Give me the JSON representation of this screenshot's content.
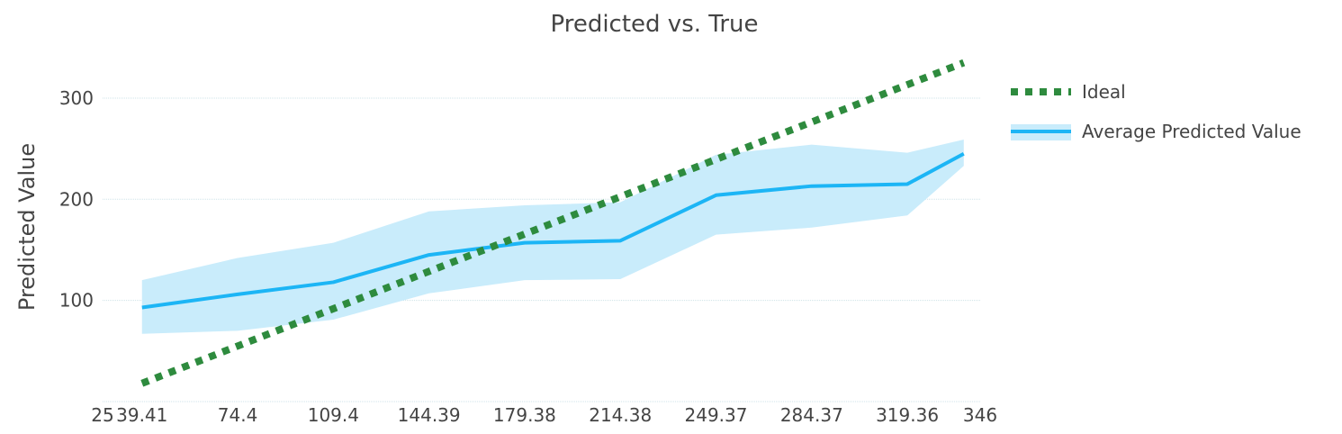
{
  "chart_data": {
    "type": "line",
    "title": "Predicted vs. True",
    "xlabel": "",
    "ylabel": "Predicted Value",
    "xlim": [
      25,
      346
    ],
    "ylim": [
      0,
      340
    ],
    "x_ticks": [
      "25",
      "39.41",
      "74.4",
      "109.4",
      "144.39",
      "179.38",
      "214.38",
      "249.37",
      "284.37",
      "319.36",
      "346"
    ],
    "y_ticks": [
      "100",
      "200",
      "300"
    ],
    "y_tick_values": [
      100,
      200,
      300
    ],
    "grid": "horizontal",
    "legend_position": "right",
    "series": [
      {
        "name": "Ideal",
        "style": "dotted",
        "color": "#2e8b3e",
        "x": [
          39.41,
          340
        ],
        "y": [
          18,
          335
        ]
      },
      {
        "name": "Average Predicted Value",
        "style": "solid",
        "color": "#1cb5f5",
        "band_color": "#c9ecfb",
        "x": [
          39.41,
          74.4,
          109.4,
          144.39,
          179.38,
          214.38,
          249.37,
          284.37,
          319.36,
          340
        ],
        "y": [
          93,
          106,
          118,
          145,
          157,
          159,
          204,
          213,
          215,
          245
        ],
        "upper": [
          120,
          142,
          157,
          188,
          194,
          197,
          244,
          254,
          246,
          259
        ],
        "lower": [
          67,
          70,
          81,
          107,
          120,
          121,
          165,
          172,
          184,
          233
        ]
      }
    ]
  }
}
